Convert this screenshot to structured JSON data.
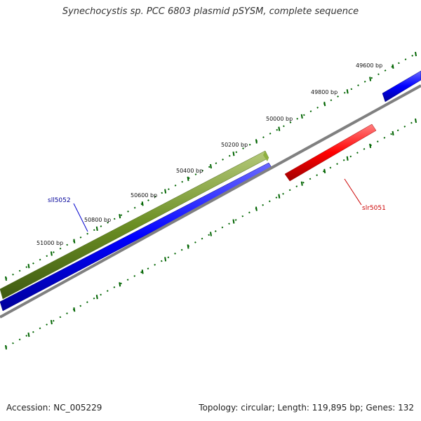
{
  "title": "Synechocystis sp. PCC 6803 plasmid pSYSM, complete sequence",
  "footer": {
    "accession": "Accession: NC_005229",
    "summary": "Topology: circular; Length: 119,895 bp; Genes: 132"
  },
  "ruler_labels": [
    "49600 bp",
    "49800 bp",
    "50000 bp",
    "50200 bp",
    "50400 bp",
    "50600 bp",
    "50800 bp",
    "51000 bp"
  ],
  "genes": [
    {
      "name": "sll5052",
      "strand": "reverse",
      "color": "#000099"
    },
    {
      "name": "slr5051",
      "strand": "forward",
      "color": "#cc0000"
    }
  ],
  "colors": {
    "forward_cds": "#ff0000",
    "reverse_cds": "#0000ff",
    "highlight": "#6b8e23",
    "backbone": "#808080",
    "ticks": "#006400"
  }
}
